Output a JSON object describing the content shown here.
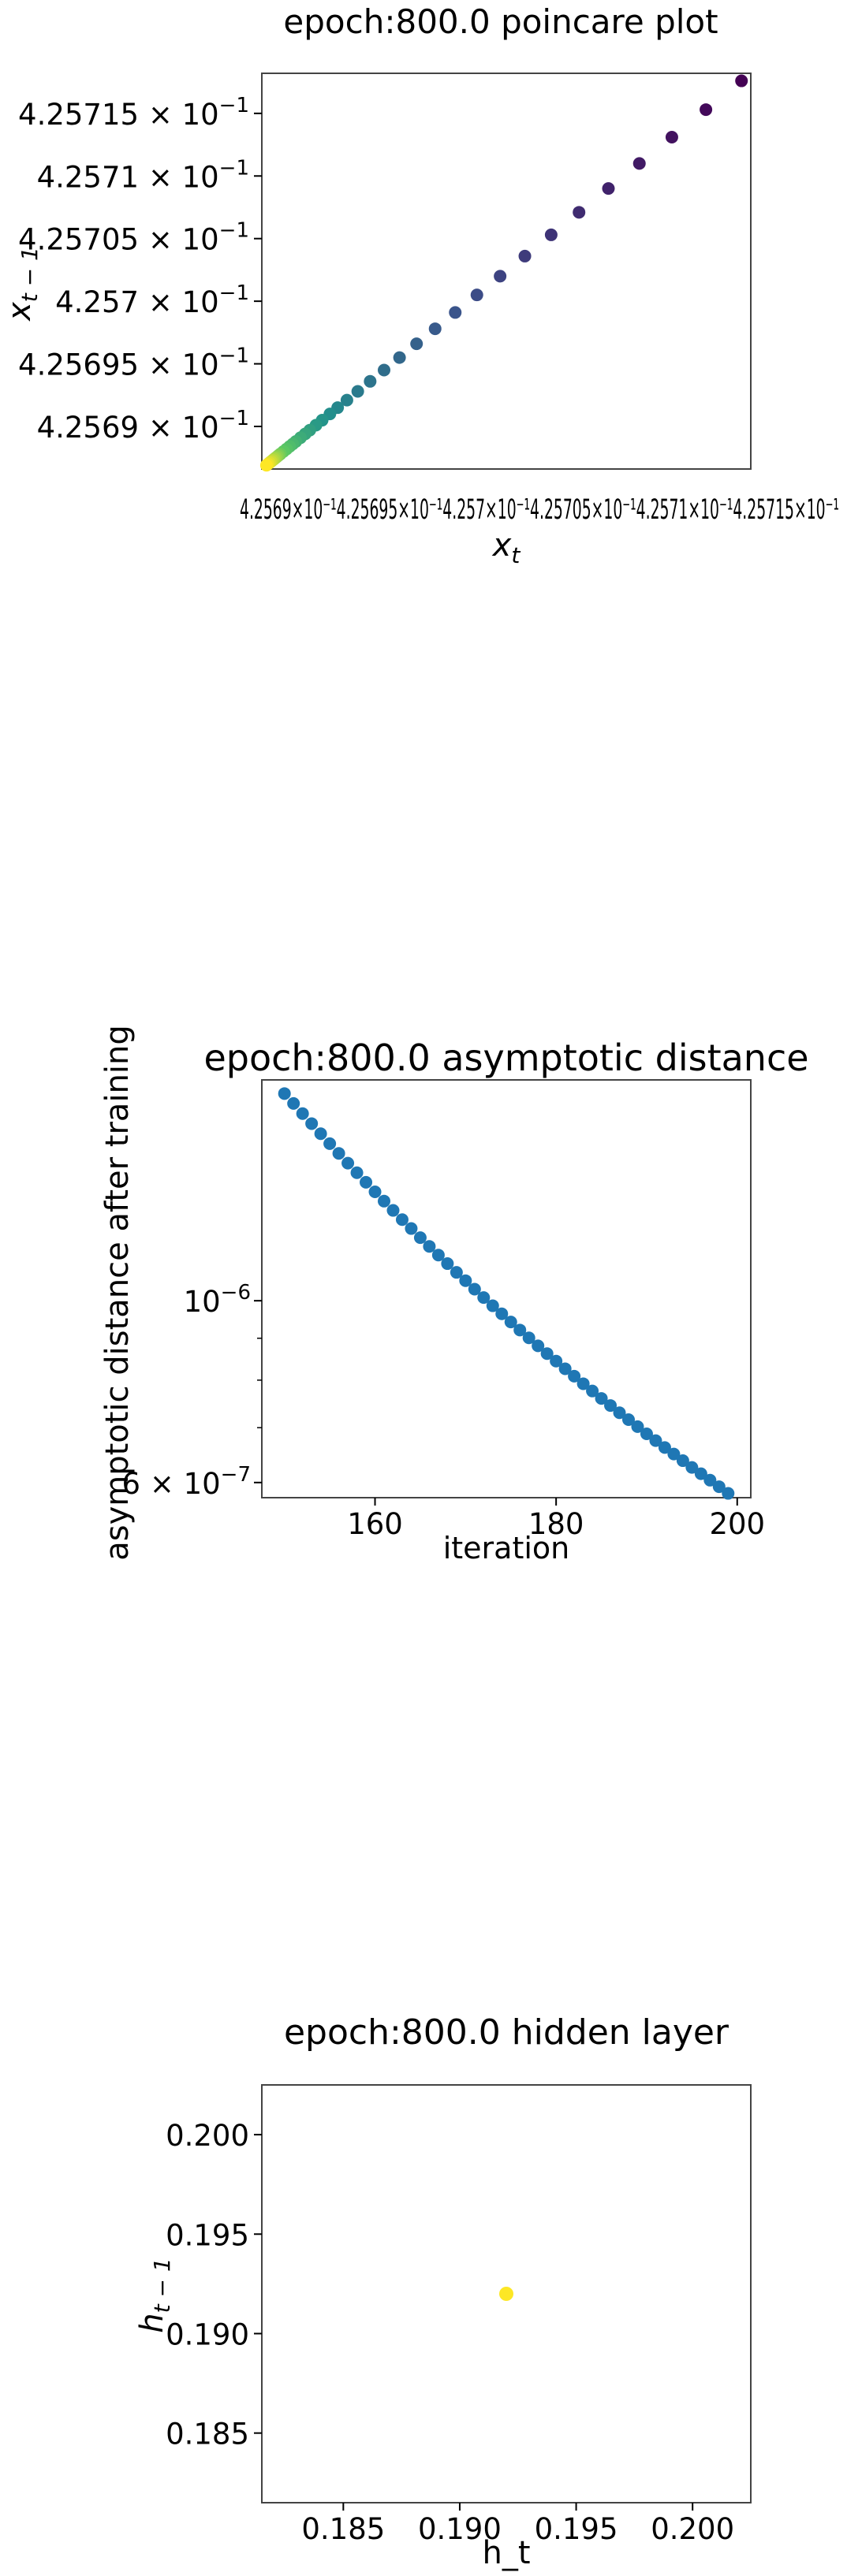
{
  "chart_data": [
    {
      "type": "scatter",
      "title": "epoch:800.0 poincare plot",
      "xlabel": "x_t",
      "ylabel": "x_{t-1}",
      "colormap": "viridis",
      "ylim": [
        0.4256866,
        0.4257182
      ],
      "xlim": [
        0.4256866,
        0.4257182
      ],
      "y_ticks": [
        {
          "value": 0.42569,
          "base": "4.2569",
          "exp": "−1"
        },
        {
          "value": 0.425695,
          "base": "4.25695",
          "exp": "−1"
        },
        {
          "value": 0.4257,
          "base": "4.257",
          "exp": "−1"
        },
        {
          "value": 0.425705,
          "base": "4.25705",
          "exp": "−1"
        },
        {
          "value": 0.42571,
          "base": "4.2571",
          "exp": "−1"
        },
        {
          "value": 0.425715,
          "base": "4.25715",
          "exp": "−1"
        }
      ],
      "x_tick_labels_overlapping": "4.2569×10⁻¹4.25695×10⁻¹4.257×10⁻¹4.25705×10⁻¹4.2571×10⁻¹4.25715×10⁻¹",
      "x": [
        0.4257176,
        0.4257153,
        0.4257131,
        0.425711,
        0.425709,
        0.4257071,
        0.4257053,
        0.4257036,
        0.425702,
        0.4257005,
        0.4256991,
        0.4256978,
        0.4256966,
        0.4256955,
        0.4256945,
        0.4256936,
        0.4256928,
        0.4256921,
        0.4256915,
        0.425691,
        0.4256905,
        0.4256901,
        0.4256897,
        0.4256894,
        0.4256891,
        0.4256888,
        0.4256886,
        0.4256884,
        0.4256882,
        0.425688,
        0.4256878,
        0.4256877,
        0.4256876,
        0.4256875,
        0.4256874,
        0.4256873,
        0.4256872,
        0.4256871,
        0.425687,
        0.4256869
      ],
      "y": [
        0.4257176,
        0.4257153,
        0.4257131,
        0.425711,
        0.425709,
        0.4257071,
        0.4257053,
        0.4257036,
        0.425702,
        0.4257005,
        0.4256991,
        0.4256978,
        0.4256966,
        0.4256955,
        0.4256945,
        0.4256936,
        0.4256928,
        0.4256921,
        0.4256915,
        0.425691,
        0.4256905,
        0.4256901,
        0.4256897,
        0.4256894,
        0.4256891,
        0.4256888,
        0.4256886,
        0.4256884,
        0.4256882,
        0.425688,
        0.4256878,
        0.4256877,
        0.4256876,
        0.4256875,
        0.4256874,
        0.4256873,
        0.4256872,
        0.4256871,
        0.425687,
        0.4256869
      ]
    },
    {
      "type": "scatter",
      "title": "epoch:800.0 asymptotic distance",
      "xlabel": "iteration",
      "ylabel": "asymptotic distance after training",
      "yscale": "log",
      "color": "#1f77b4",
      "xlim": [
        147.5,
        201.5
      ],
      "ylim": [
        5.75e-07,
        1.86e-06
      ],
      "x_ticks": [
        160,
        180,
        200
      ],
      "y_ticks": [
        {
          "value": 1e-06,
          "base": "10",
          "exp": "−6"
        },
        {
          "value": 6e-07,
          "base": "6 × 10",
          "exp": "−7"
        }
      ],
      "x": [
        150,
        151,
        152,
        153,
        154,
        155,
        156,
        157,
        158,
        159,
        160,
        161,
        162,
        163,
        164,
        165,
        166,
        167,
        168,
        169,
        170,
        171,
        172,
        173,
        174,
        175,
        176,
        177,
        178,
        179,
        180,
        181,
        182,
        183,
        184,
        185,
        186,
        187,
        188,
        189,
        190,
        191,
        192,
        193,
        194,
        195,
        196,
        197,
        198,
        199
      ],
      "y": [
        1.79e-06,
        1.741e-06,
        1.692e-06,
        1.645e-06,
        1.599e-06,
        1.555e-06,
        1.513e-06,
        1.472e-06,
        1.433e-06,
        1.395e-06,
        1.358e-06,
        1.323e-06,
        1.289e-06,
        1.256e-06,
        1.225e-06,
        1.194e-06,
        1.165e-06,
        1.137e-06,
        1.11e-06,
        1.083e-06,
        1.058e-06,
        1.033e-06,
        1.009e-06,
        9.86e-07,
        9.64e-07,
        9.42e-07,
        9.21e-07,
        9.01e-07,
        8.81e-07,
        8.62e-07,
        8.44e-07,
        8.26e-07,
        8.09e-07,
        7.92e-07,
        7.76e-07,
        7.6e-07,
        7.45e-07,
        7.3e-07,
        7.16e-07,
        7.02e-07,
        6.88e-07,
        6.75e-07,
        6.62e-07,
        6.5e-07,
        6.38e-07,
        6.26e-07,
        6.15e-07,
        6.04e-07,
        5.93e-07,
        5.82e-07
      ]
    },
    {
      "type": "scatter",
      "title": "epoch:800.0 hidden layer",
      "xlabel": "h_t",
      "ylabel": "h_{t-1}",
      "color": "#fde725",
      "xlim": [
        0.1815,
        0.2025
      ],
      "ylim": [
        0.1815,
        0.2025
      ],
      "x_ticks": [
        "0.185",
        "0.190",
        "0.195",
        "0.200"
      ],
      "y_ticks": [
        "0.185",
        "0.190",
        "0.195",
        "0.200"
      ],
      "x": [
        0.192
      ],
      "y": [
        0.192
      ]
    }
  ]
}
